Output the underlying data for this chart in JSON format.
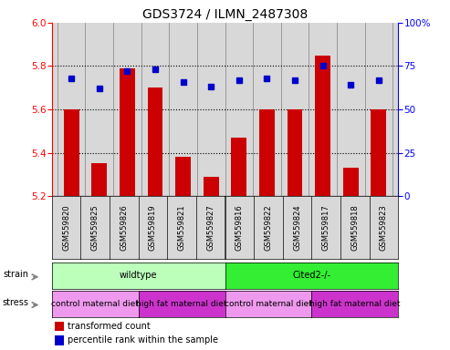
{
  "title": "GDS3724 / ILMN_2487308",
  "samples": [
    "GSM559820",
    "GSM559825",
    "GSM559826",
    "GSM559819",
    "GSM559821",
    "GSM559827",
    "GSM559816",
    "GSM559822",
    "GSM559824",
    "GSM559817",
    "GSM559818",
    "GSM559823"
  ],
  "transformed_counts": [
    5.6,
    5.35,
    5.79,
    5.7,
    5.38,
    5.29,
    5.47,
    5.6,
    5.6,
    5.85,
    5.33,
    5.6
  ],
  "percentile_ranks": [
    68,
    62,
    72,
    73,
    66,
    63,
    67,
    68,
    67,
    75,
    64,
    67
  ],
  "bar_color": "#cc0000",
  "dot_color": "#0000cc",
  "y_min": 5.2,
  "y_max": 6.0,
  "y_ticks": [
    5.2,
    5.4,
    5.6,
    5.8,
    6.0
  ],
  "y2_ticks": [
    0,
    25,
    50,
    75,
    100
  ],
  "y2_tick_labels": [
    "0",
    "25",
    "50",
    "75",
    "100%"
  ],
  "strain_groups": [
    {
      "label": "wildtype",
      "start": 0,
      "end": 6,
      "color": "#bbffbb"
    },
    {
      "label": "Cited2-/-",
      "start": 6,
      "end": 12,
      "color": "#33ee33"
    }
  ],
  "stress_groups": [
    {
      "label": "control maternal diet",
      "start": 0,
      "end": 3,
      "color": "#ee99ee"
    },
    {
      "label": "high fat maternal diet",
      "start": 3,
      "end": 6,
      "color": "#cc33cc"
    },
    {
      "label": "control maternal diet",
      "start": 6,
      "end": 9,
      "color": "#ee99ee"
    },
    {
      "label": "high fat maternal diet",
      "start": 9,
      "end": 12,
      "color": "#cc33cc"
    }
  ],
  "bar_width": 0.55,
  "background_color": "#ffffff",
  "plot_bg_color": "#d8d8d8",
  "title_fontsize": 10,
  "tick_fontsize": 7.5,
  "sample_fontsize": 6,
  "group_fontsize": 7,
  "legend_fontsize": 7
}
